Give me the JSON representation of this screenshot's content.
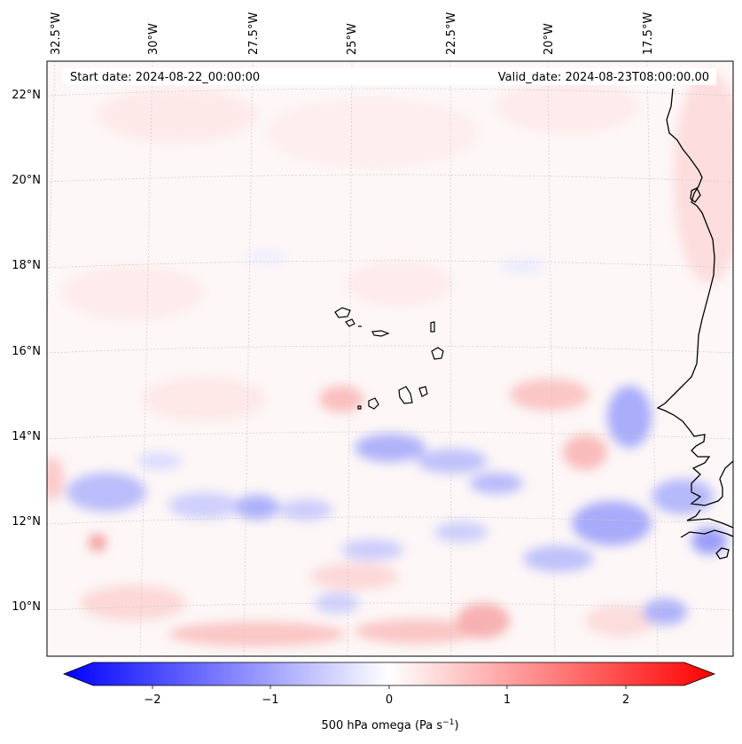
{
  "header": {
    "start_date": "Start date: 2024-08-22_00:00:00",
    "valid_date": "Valid_date: 2024-08-23T08:00:00.00"
  },
  "lon_labels": [
    "32.5°W",
    "30°W",
    "27.5°W",
    "25°W",
    "22.5°W",
    "20°W",
    "17.5°W"
  ],
  "lat_labels": [
    "22°N",
    "20°N",
    "18°N",
    "16°N",
    "14°N",
    "12°N",
    "10°N"
  ],
  "colorbar": {
    "ticks": [
      "−2",
      "−1",
      "0",
      "1",
      "2"
    ],
    "label_main": "500 hPa omega (Pa s",
    "label_sup": "−1",
    "label_end": ")",
    "min_color": "#0000ff",
    "mid_color": "#ffffff",
    "max_color": "#ff0000"
  },
  "field": {
    "variable": "500 hPa omega",
    "units": "Pa s−1",
    "negative_color": "#0000ff",
    "positive_color": "#ff0000",
    "gridline_color": "#cccccc",
    "coastline_color": "#000000"
  }
}
